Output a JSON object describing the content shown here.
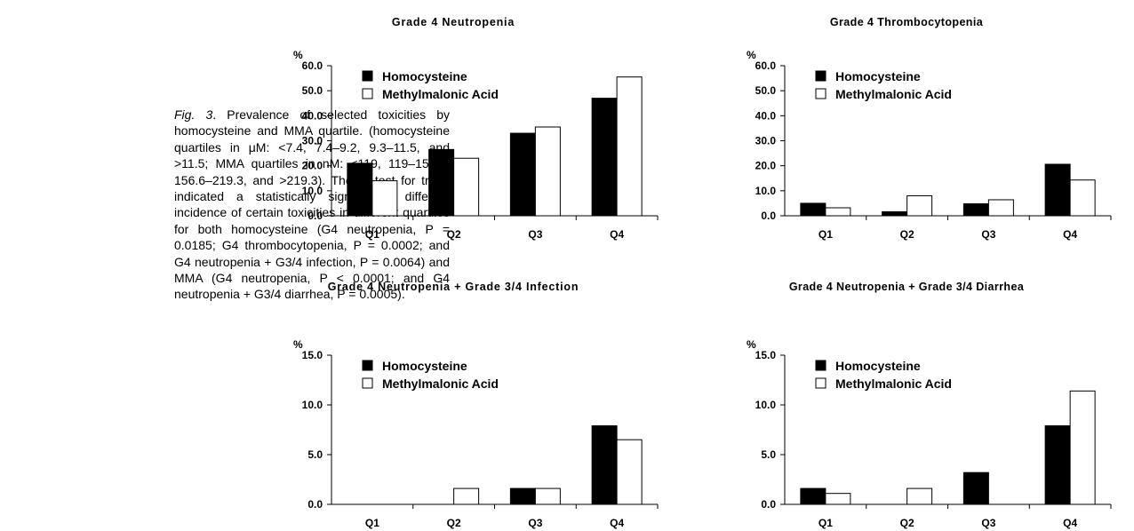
{
  "caption": {
    "fig_label": "Fig. 3",
    "text": "Prevalence of selected toxicities by homocysteine and MMA quartile. (homocysteine quartiles in μM: <7.4, 7.4–9.2, 9.3–11.5, and >11.5; MMA quartiles in nM: <119, 119–156.5, 156.6–219.3, and >219.3). The χ² test for trend indicated a statistically significantly different incidence of certain toxicities in different quartiles for both homocysteine (G4 neutropenia, P = 0.0185; G4 thrombocytopenia, P = 0.0002; and G4 neutropenia + G3/4 infection, P = 0.0064) and MMA (G4 neutropenia, P < 0.0001; and G4 neutropenia + G3/4 diarrhea, P = 0.0005)."
  },
  "colors": {
    "homocysteine": "#000000",
    "methylmalonic": "#ffffff",
    "axis": "#000000"
  },
  "chart_data": [
    {
      "type": "bar",
      "title": "Grade 4 Neutropenia",
      "ylabel": "%",
      "categories": [
        "Q1",
        "Q2",
        "Q3",
        "Q4"
      ],
      "ylim": [
        0,
        60
      ],
      "yticks": [
        0,
        10,
        20,
        30,
        40,
        50,
        60
      ],
      "ytick_labels": [
        "0.0",
        "10.0",
        "20.0",
        "30.0",
        "40.0",
        "50.0",
        "60.0"
      ],
      "series": [
        {
          "name": "Homocysteine",
          "values": [
            21,
            26.5,
            33,
            47
          ]
        },
        {
          "name": "Methylmalonic Acid",
          "values": [
            14,
            23,
            35.5,
            55.5
          ]
        }
      ],
      "legend": "top-left"
    },
    {
      "type": "bar",
      "title": "Grade 4 Thrombocytopenia",
      "ylabel": "%",
      "categories": [
        "Q1",
        "Q2",
        "Q3",
        "Q4"
      ],
      "ylim": [
        0,
        60
      ],
      "yticks": [
        0,
        10,
        20,
        30,
        40,
        50,
        60
      ],
      "ytick_labels": [
        "0.0",
        "10.0",
        "20.0",
        "30.0",
        "40.0",
        "50.0",
        "60.0"
      ],
      "series": [
        {
          "name": "Homocysteine",
          "values": [
            5,
            1.6,
            4.8,
            20.6
          ]
        },
        {
          "name": "Methylmalonic Acid",
          "values": [
            3.2,
            8,
            6.4,
            14.3
          ]
        }
      ],
      "legend": "top-left"
    },
    {
      "type": "bar",
      "title": "Grade 4 Neutropenia + Grade 3/4 Infection",
      "ylabel": "%",
      "categories": [
        "Q1",
        "Q2",
        "Q3",
        "Q4"
      ],
      "ylim": [
        0,
        15
      ],
      "yticks": [
        0,
        5,
        10,
        15
      ],
      "ytick_labels": [
        "0.0",
        "5.0",
        "10.0",
        "15.0"
      ],
      "series": [
        {
          "name": "Homocysteine",
          "values": [
            0,
            0,
            1.6,
            7.9
          ]
        },
        {
          "name": "Methylmalonic Acid",
          "values": [
            0,
            1.6,
            1.6,
            6.5
          ]
        }
      ],
      "legend": "top-left"
    },
    {
      "type": "bar",
      "title": "Grade 4 Neutropenia + Grade 3/4 Diarrhea",
      "ylabel": "%",
      "categories": [
        "Q1",
        "Q2",
        "Q3",
        "Q4"
      ],
      "ylim": [
        0,
        15
      ],
      "yticks": [
        0,
        5,
        10,
        15
      ],
      "ytick_labels": [
        "0.0",
        "5.0",
        "10.0",
        "15.0"
      ],
      "series": [
        {
          "name": "Homocysteine",
          "values": [
            1.6,
            0,
            3.2,
            7.9
          ]
        },
        {
          "name": "Methylmalonic Acid",
          "values": [
            1.1,
            1.6,
            0,
            11.4
          ]
        }
      ],
      "legend": "top-left"
    }
  ]
}
